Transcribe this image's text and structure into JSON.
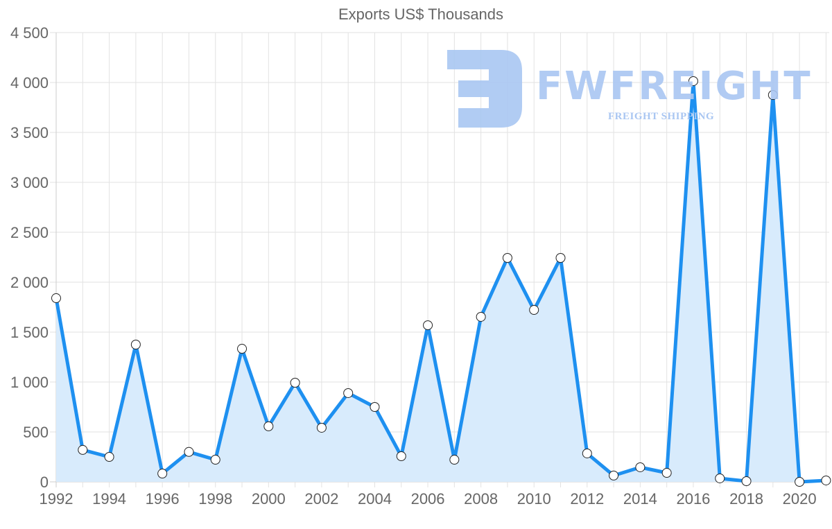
{
  "chart_data": {
    "type": "line",
    "title": "Exports US$ Thousands",
    "xlabel": "",
    "ylabel": "",
    "ylim": [
      0,
      4500
    ],
    "yticks": [
      "0",
      "500",
      "1 000",
      "1 500",
      "2 000",
      "2 500",
      "3 000",
      "3 500",
      "4 000",
      "4 500"
    ],
    "ytick_values": [
      0,
      500,
      1000,
      1500,
      2000,
      2500,
      3000,
      3500,
      4000,
      4500
    ],
    "xtick_labels": [
      "1992",
      "1994",
      "1996",
      "1998",
      "2000",
      "2002",
      "2004",
      "2006",
      "2008",
      "2010",
      "2012",
      "2014",
      "2016",
      "2018",
      "2020"
    ],
    "grid": true,
    "legend": null,
    "fill": true,
    "x": [
      1992,
      1993,
      1994,
      1995,
      1996,
      1997,
      1998,
      1999,
      2000,
      2001,
      2002,
      2003,
      2004,
      2005,
      2006,
      2007,
      2008,
      2009,
      2010,
      2011,
      2012,
      2013,
      2014,
      2015,
      2016,
      2017,
      2018,
      2019,
      2020,
      2021
    ],
    "series": [
      {
        "name": "Exports US$ Thousands",
        "values": [
          1840,
          320,
          250,
          1375,
          83,
          300,
          222,
          1333,
          556,
          993,
          542,
          889,
          750,
          257,
          1569,
          222,
          1653,
          2243,
          1722,
          2243,
          285,
          63,
          146,
          90,
          4014,
          35,
          7,
          3875,
          0,
          14
        ]
      }
    ],
    "colors": {
      "line": "#1e90f0",
      "fill": "#d8ebfc",
      "point_fill": "#ffffff",
      "point_stroke": "#222222",
      "grid": "#e2e2e2",
      "text": "#666666"
    }
  },
  "watermark": {
    "brand": "FWFREIGHT",
    "tagline": "FREIGHT SHIPPING"
  }
}
